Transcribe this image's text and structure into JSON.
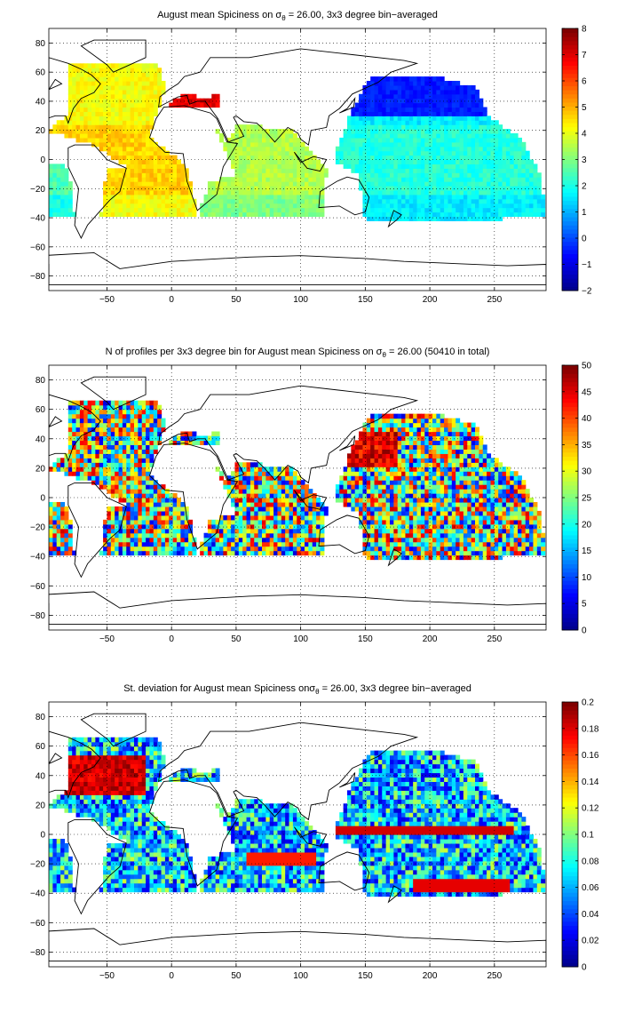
{
  "panels": [
    {
      "title": "August mean Spiciness on σ",
      "title_sub": "θ",
      "title_rest": " = 26.00, 3x3 degree bin−averaged",
      "colorbar_ticks": [
        "8",
        "7",
        "6",
        "5",
        "4",
        "3",
        "2",
        "1",
        "0",
        "−1",
        "−2"
      ],
      "colormap": "jet"
    },
    {
      "title": "N of profiles per 3x3 degree bin for August mean Spiciness on σ",
      "title_sub": "θ",
      "title_rest": " = 26.00 (50410 in total)",
      "colorbar_ticks": [
        "50",
        "45",
        "40",
        "35",
        "30",
        "25",
        "20",
        "15",
        "10",
        "5",
        "0"
      ],
      "colormap": "jet"
    },
    {
      "title": "St. deviation for August mean Spiciness onσ",
      "title_sub": "θ",
      "title_rest": " = 26.00, 3x3 degree bin−averaged",
      "colorbar_ticks": [
        "0.2",
        "0.18",
        "0.16",
        "0.14",
        "0.12",
        "0.1",
        "0.08",
        "0.06",
        "0.04",
        "0.02",
        "0"
      ],
      "colormap": "jet"
    }
  ],
  "axes": {
    "x_ticks": [
      "−50",
      "0",
      "50",
      "100",
      "150",
      "200",
      "250"
    ],
    "y_ticks": [
      "80",
      "60",
      "40",
      "20",
      "0",
      "−20",
      "−40",
      "−60",
      "−80"
    ],
    "x_range": [
      -95,
      290
    ],
    "y_range": [
      -90,
      90
    ],
    "grid": "dotted"
  },
  "colors": {
    "jet": [
      "#00008f",
      "#0000ff",
      "#0080ff",
      "#00ffff",
      "#80ff80",
      "#ffff00",
      "#ff8000",
      "#ff0000",
      "#800000"
    ]
  }
}
